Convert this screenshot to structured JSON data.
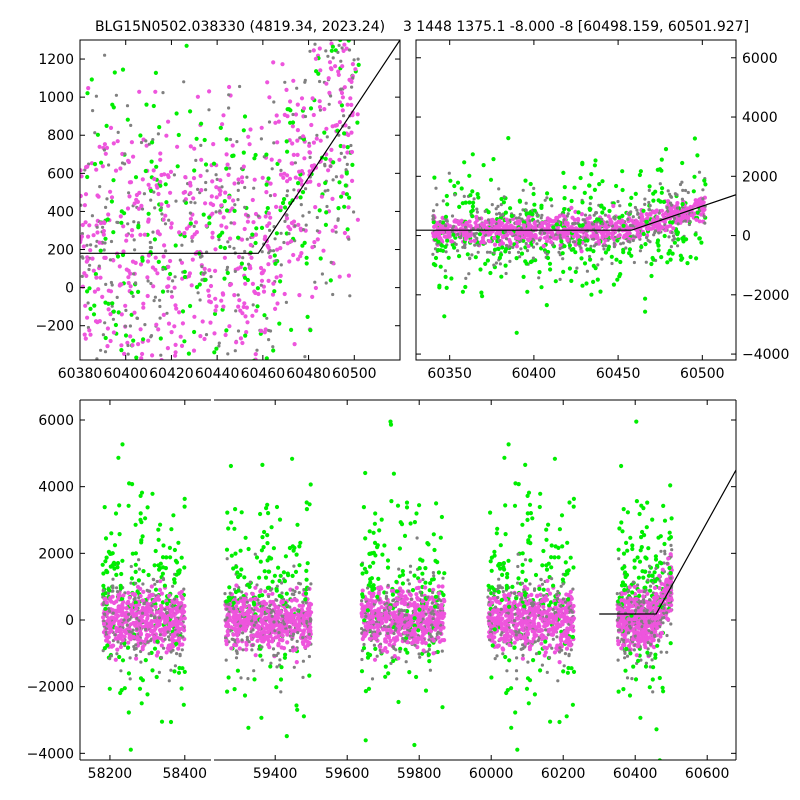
{
  "chart_data": [
    {
      "id": "zoom",
      "type": "scatter",
      "title": "BLG15N0502.038330 (4819.34, 2023.24)",
      "xlim": [
        60380,
        60520
      ],
      "ylim": [
        -380,
        1300
      ],
      "xticks": [
        60380,
        60400,
        60420,
        60440,
        60460,
        60480,
        60500
      ],
      "yticks": [
        -200,
        0,
        200,
        400,
        600,
        800,
        1000,
        1200
      ],
      "yaxis_side": "left",
      "model_line": [
        [
          60380,
          180
        ],
        [
          60458,
          180
        ],
        [
          60520,
          1300
        ]
      ],
      "series_colors": {
        "gray": "#808080",
        "green": "#00ee00",
        "pink": "#ee55dd"
      }
    },
    {
      "id": "recent",
      "type": "scatter",
      "title": "3 1448 1375.1 -8.000 -8 [60498.159, 60501.927]",
      "xlim": [
        60330,
        60520
      ],
      "ylim": [
        -4200,
        6600
      ],
      "xticks": [
        60350,
        60400,
        60450,
        60500
      ],
      "yticks": [
        -4000,
        -2000,
        0,
        2000,
        4000,
        6000
      ],
      "yaxis_side": "right",
      "model_line": [
        [
          60330,
          180
        ],
        [
          60458,
          180
        ],
        [
          60520,
          1380
        ]
      ],
      "series_colors": {
        "gray": "#808080",
        "green": "#00ee00",
        "pink": "#ee55dd"
      }
    },
    {
      "id": "full",
      "type": "scatter",
      "title": "",
      "xlim": [
        58120,
        60680
      ],
      "ylim": [
        -4200,
        6600
      ],
      "xticks": [
        58200,
        58400,
        59400,
        59600,
        59800,
        60000,
        60200,
        60400,
        60600
      ],
      "yticks": [
        -4000,
        -2000,
        0,
        2000,
        4000,
        6000
      ],
      "yaxis_side": "left",
      "broken_x": true,
      "segments": [
        {
          "xlim": [
            58120,
            58470
          ]
        },
        {
          "xlim": [
            59230,
            60680
          ]
        }
      ],
      "seasons": [
        [
          58180,
          58400
        ],
        [
          59260,
          59500
        ],
        [
          59640,
          59870
        ],
        [
          59990,
          60230
        ],
        [
          60350,
          60502
        ]
      ],
      "model_line": [
        [
          60300,
          180
        ],
        [
          60458,
          180
        ],
        [
          60680,
          4500
        ]
      ],
      "series_colors": {
        "gray": "#808080",
        "green": "#00ee00",
        "pink": "#ee55dd"
      }
    }
  ]
}
